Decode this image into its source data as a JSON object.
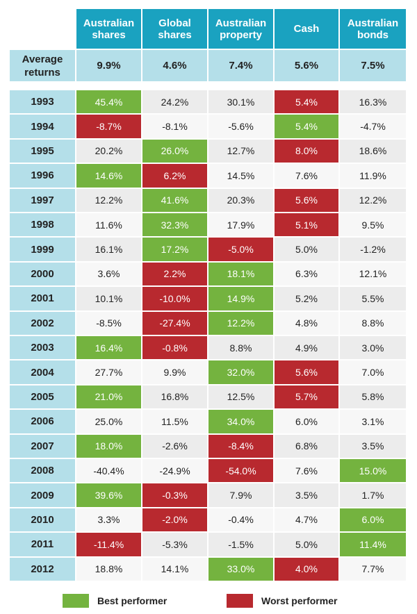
{
  "table": {
    "header": [
      "Australian shares",
      "Global shares",
      "Australian property",
      "Cash",
      "Australian bonds"
    ],
    "average": {
      "label": "Average returns",
      "values": [
        "9.9%",
        "4.6%",
        "7.4%",
        "5.6%",
        "7.5%"
      ]
    },
    "rows": [
      {
        "year": "1993",
        "cells": [
          "45.4%",
          "24.2%",
          "30.1%",
          "5.4%",
          "16.3%"
        ],
        "best": 0,
        "worst": 3
      },
      {
        "year": "1994",
        "cells": [
          "-8.7%",
          "-8.1%",
          "-5.6%",
          "5.4%",
          "-4.7%"
        ],
        "best": 3,
        "worst": 0
      },
      {
        "year": "1995",
        "cells": [
          "20.2%",
          "26.0%",
          "12.7%",
          "8.0%",
          "18.6%"
        ],
        "best": 1,
        "worst": 3
      },
      {
        "year": "1996",
        "cells": [
          "14.6%",
          "6.2%",
          "14.5%",
          "7.6%",
          "11.9%"
        ],
        "best": 0,
        "worst": 1
      },
      {
        "year": "1997",
        "cells": [
          "12.2%",
          "41.6%",
          "20.3%",
          "5.6%",
          "12.2%"
        ],
        "best": 1,
        "worst": 3
      },
      {
        "year": "1998",
        "cells": [
          "11.6%",
          "32.3%",
          "17.9%",
          "5.1%",
          "9.5%"
        ],
        "best": 1,
        "worst": 3
      },
      {
        "year": "1999",
        "cells": [
          "16.1%",
          "17.2%",
          "-5.0%",
          "5.0%",
          "-1.2%"
        ],
        "best": 1,
        "worst": 2
      },
      {
        "year": "2000",
        "cells": [
          "3.6%",
          "2.2%",
          "18.1%",
          "6.3%",
          "12.1%"
        ],
        "best": 2,
        "worst": 1
      },
      {
        "year": "2001",
        "cells": [
          "10.1%",
          "-10.0%",
          "14.9%",
          "5.2%",
          "5.5%"
        ],
        "best": 2,
        "worst": 1
      },
      {
        "year": "2002",
        "cells": [
          "-8.5%",
          "-27.4%",
          "12.2%",
          "4.8%",
          "8.8%"
        ],
        "best": 2,
        "worst": 1
      },
      {
        "year": "2003",
        "cells": [
          "16.4%",
          "-0.8%",
          "8.8%",
          "4.9%",
          "3.0%"
        ],
        "best": 0,
        "worst": 1
      },
      {
        "year": "2004",
        "cells": [
          "27.7%",
          "9.9%",
          "32.0%",
          "5.6%",
          "7.0%"
        ],
        "best": 2,
        "worst": 3
      },
      {
        "year": "2005",
        "cells": [
          "21.0%",
          "16.8%",
          "12.5%",
          "5.7%",
          "5.8%"
        ],
        "best": 0,
        "worst": 3
      },
      {
        "year": "2006",
        "cells": [
          "25.0%",
          "11.5%",
          "34.0%",
          "6.0%",
          "3.1%"
        ],
        "best": 2,
        "worst": null
      },
      {
        "year": "2007",
        "cells": [
          "18.0%",
          "-2.6%",
          "-8.4%",
          "6.8%",
          "3.5%"
        ],
        "best": 0,
        "worst": 2
      },
      {
        "year": "2008",
        "cells": [
          "-40.4%",
          "-24.9%",
          "-54.0%",
          "7.6%",
          "15.0%"
        ],
        "best": 4,
        "worst": 2
      },
      {
        "year": "2009",
        "cells": [
          "39.6%",
          "-0.3%",
          "7.9%",
          "3.5%",
          "1.7%"
        ],
        "best": 0,
        "worst": 1
      },
      {
        "year": "2010",
        "cells": [
          "3.3%",
          "-2.0%",
          "-0.4%",
          "4.7%",
          "6.0%"
        ],
        "best": 4,
        "worst": 1
      },
      {
        "year": "2011",
        "cells": [
          "-11.4%",
          "-5.3%",
          "-1.5%",
          "5.0%",
          "11.4%"
        ],
        "best": 4,
        "worst": 0
      },
      {
        "year": "2012",
        "cells": [
          "18.8%",
          "14.1%",
          "33.0%",
          "4.0%",
          "7.7%"
        ],
        "best": 2,
        "worst": 3
      }
    ]
  },
  "legend": [
    {
      "label": "Best performer",
      "color": "#74b33f"
    },
    {
      "label": "Worst performer",
      "color": "#b8292f"
    }
  ]
}
